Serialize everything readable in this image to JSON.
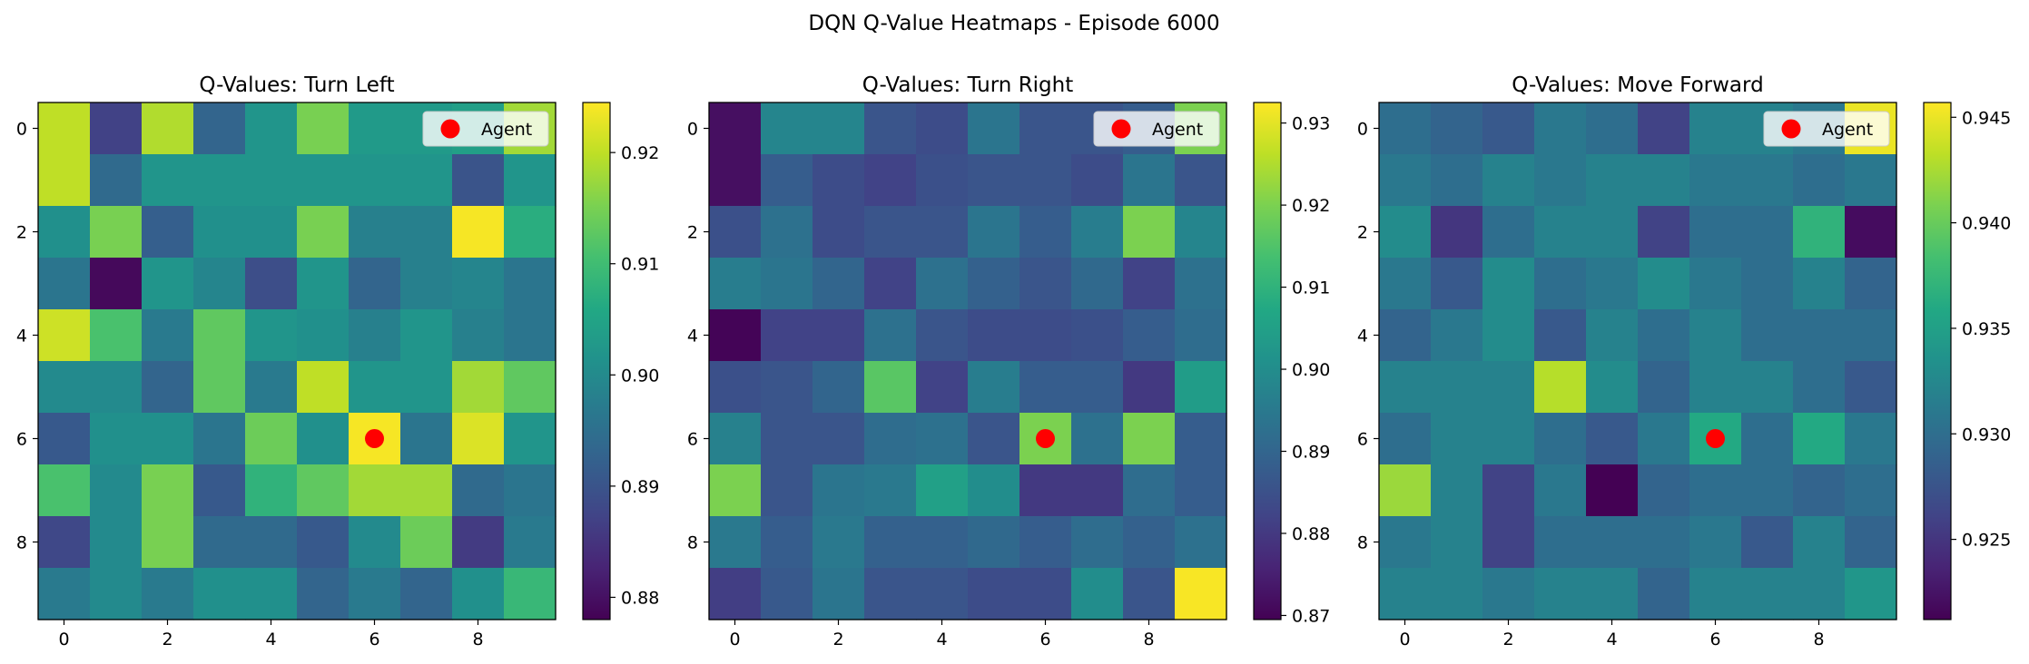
{
  "suptitle": "DQN Q-Value Heatmaps - Episode 6000",
  "legend_label": "Agent",
  "colors": {
    "marker": "#ff0000",
    "colormap": "viridis"
  },
  "chart_data": [
    {
      "type": "heatmap",
      "title": "Q-Values: Turn Left",
      "x_ticks": [
        "0",
        "2",
        "4",
        "6",
        "8"
      ],
      "y_ticks": [
        "0",
        "2",
        "4",
        "6",
        "8"
      ],
      "colorbar_ticks": [
        "0.88",
        "0.89",
        "0.90",
        "0.91",
        "0.92"
      ],
      "vmin": 0.878,
      "vmax": 0.9245,
      "agent": {
        "row": 6,
        "col": 6,
        "label": "Agent"
      },
      "legend_position": "top-right",
      "values": [
        [
          0.92,
          0.887,
          0.919,
          0.893,
          0.902,
          0.915,
          0.903,
          0.903,
          0.904,
          0.918
        ],
        [
          0.92,
          0.894,
          0.902,
          0.902,
          0.902,
          0.902,
          0.902,
          0.902,
          0.89,
          0.902
        ],
        [
          0.901,
          0.915,
          0.892,
          0.901,
          0.901,
          0.915,
          0.898,
          0.898,
          0.924,
          0.907
        ],
        [
          0.896,
          0.879,
          0.902,
          0.899,
          0.889,
          0.902,
          0.893,
          0.898,
          0.899,
          0.896
        ],
        [
          0.921,
          0.911,
          0.897,
          0.913,
          0.902,
          0.901,
          0.898,
          0.902,
          0.898,
          0.896
        ],
        [
          0.9,
          0.9,
          0.893,
          0.913,
          0.897,
          0.92,
          0.902,
          0.902,
          0.918,
          0.913
        ],
        [
          0.891,
          0.901,
          0.901,
          0.896,
          0.914,
          0.901,
          0.924,
          0.896,
          0.922,
          0.902
        ],
        [
          0.911,
          0.9,
          0.915,
          0.891,
          0.908,
          0.913,
          0.918,
          0.918,
          0.894,
          0.896
        ],
        [
          0.888,
          0.9,
          0.915,
          0.894,
          0.894,
          0.891,
          0.9,
          0.914,
          0.886,
          0.897
        ],
        [
          0.897,
          0.9,
          0.897,
          0.901,
          0.901,
          0.893,
          0.897,
          0.893,
          0.901,
          0.909
        ]
      ]
    },
    {
      "type": "heatmap",
      "title": "Q-Values: Turn Right",
      "x_ticks": [
        "0",
        "2",
        "4",
        "6",
        "8"
      ],
      "y_ticks": [
        "0",
        "2",
        "4",
        "6",
        "8"
      ],
      "colorbar_ticks": [
        "0.87",
        "0.88",
        "0.89",
        "0.90",
        "0.91",
        "0.92",
        "0.93"
      ],
      "vmin": 0.8695,
      "vmax": 0.9325,
      "agent": {
        "row": 6,
        "col": 6,
        "label": "Agent"
      },
      "legend_position": "top-right",
      "values": [
        [
          0.872,
          0.898,
          0.898,
          0.886,
          0.884,
          0.894,
          0.886,
          0.886,
          0.888,
          0.92
        ],
        [
          0.872,
          0.888,
          0.884,
          0.882,
          0.885,
          0.886,
          0.886,
          0.884,
          0.894,
          0.886
        ],
        [
          0.885,
          0.893,
          0.884,
          0.886,
          0.886,
          0.894,
          0.888,
          0.896,
          0.92,
          0.898
        ],
        [
          0.896,
          0.894,
          0.89,
          0.882,
          0.893,
          0.889,
          0.886,
          0.891,
          0.882,
          0.893
        ],
        [
          0.87,
          0.882,
          0.882,
          0.893,
          0.886,
          0.884,
          0.884,
          0.885,
          0.888,
          0.892
        ],
        [
          0.885,
          0.886,
          0.89,
          0.916,
          0.882,
          0.896,
          0.888,
          0.888,
          0.88,
          0.904
        ],
        [
          0.897,
          0.886,
          0.886,
          0.892,
          0.893,
          0.886,
          0.92,
          0.893,
          0.92,
          0.888
        ],
        [
          0.92,
          0.886,
          0.894,
          0.895,
          0.905,
          0.9,
          0.88,
          0.88,
          0.892,
          0.888
        ],
        [
          0.895,
          0.888,
          0.895,
          0.889,
          0.889,
          0.891,
          0.888,
          0.892,
          0.889,
          0.893
        ],
        [
          0.881,
          0.887,
          0.894,
          0.886,
          0.886,
          0.884,
          0.884,
          0.9,
          0.886,
          0.932
        ]
      ]
    },
    {
      "type": "heatmap",
      "title": "Q-Values: Move Forward",
      "x_ticks": [
        "0",
        "2",
        "4",
        "6",
        "8"
      ],
      "y_ticks": [
        "0",
        "2",
        "4",
        "6",
        "8"
      ],
      "colorbar_ticks": [
        "0.925",
        "0.930",
        "0.935",
        "0.940",
        "0.945"
      ],
      "vmin": 0.9212,
      "vmax": 0.9457,
      "agent": {
        "row": 6,
        "col": 6,
        "label": "Agent"
      },
      "legend_position": "top-right",
      "values": [
        [
          0.93,
          0.929,
          0.928,
          0.931,
          0.93,
          0.926,
          0.932,
          0.932,
          0.931,
          0.945
        ],
        [
          0.931,
          0.93,
          0.932,
          0.931,
          0.932,
          0.932,
          0.931,
          0.931,
          0.93,
          0.931
        ],
        [
          0.933,
          0.925,
          0.93,
          0.932,
          0.932,
          0.926,
          0.93,
          0.93,
          0.937,
          0.922
        ],
        [
          0.931,
          0.928,
          0.933,
          0.93,
          0.931,
          0.933,
          0.931,
          0.93,
          0.932,
          0.929
        ],
        [
          0.929,
          0.931,
          0.933,
          0.928,
          0.932,
          0.93,
          0.932,
          0.93,
          0.93,
          0.93
        ],
        [
          0.932,
          0.932,
          0.932,
          0.943,
          0.933,
          0.929,
          0.932,
          0.932,
          0.93,
          0.928
        ],
        [
          0.93,
          0.932,
          0.932,
          0.93,
          0.928,
          0.931,
          0.936,
          0.93,
          0.936,
          0.931
        ],
        [
          0.942,
          0.932,
          0.926,
          0.931,
          0.921,
          0.929,
          0.93,
          0.93,
          0.929,
          0.93
        ],
        [
          0.931,
          0.932,
          0.926,
          0.93,
          0.93,
          0.93,
          0.931,
          0.928,
          0.932,
          0.929
        ],
        [
          0.932,
          0.932,
          0.931,
          0.932,
          0.932,
          0.929,
          0.932,
          0.932,
          0.932,
          0.934
        ]
      ]
    }
  ]
}
